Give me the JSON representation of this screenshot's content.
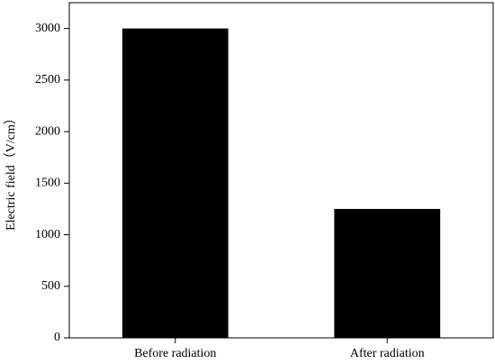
{
  "chart_data": {
    "type": "bar",
    "categories": [
      "Before radiation",
      "After radiation"
    ],
    "values": [
      3000,
      1250
    ],
    "color": "#000000",
    "ylabel": "Electric field（V/cm）",
    "ylim": [
      0,
      3250
    ],
    "yticks": [
      0,
      500,
      1000,
      1500,
      2000,
      2500,
      3000
    ],
    "grid": false
  }
}
